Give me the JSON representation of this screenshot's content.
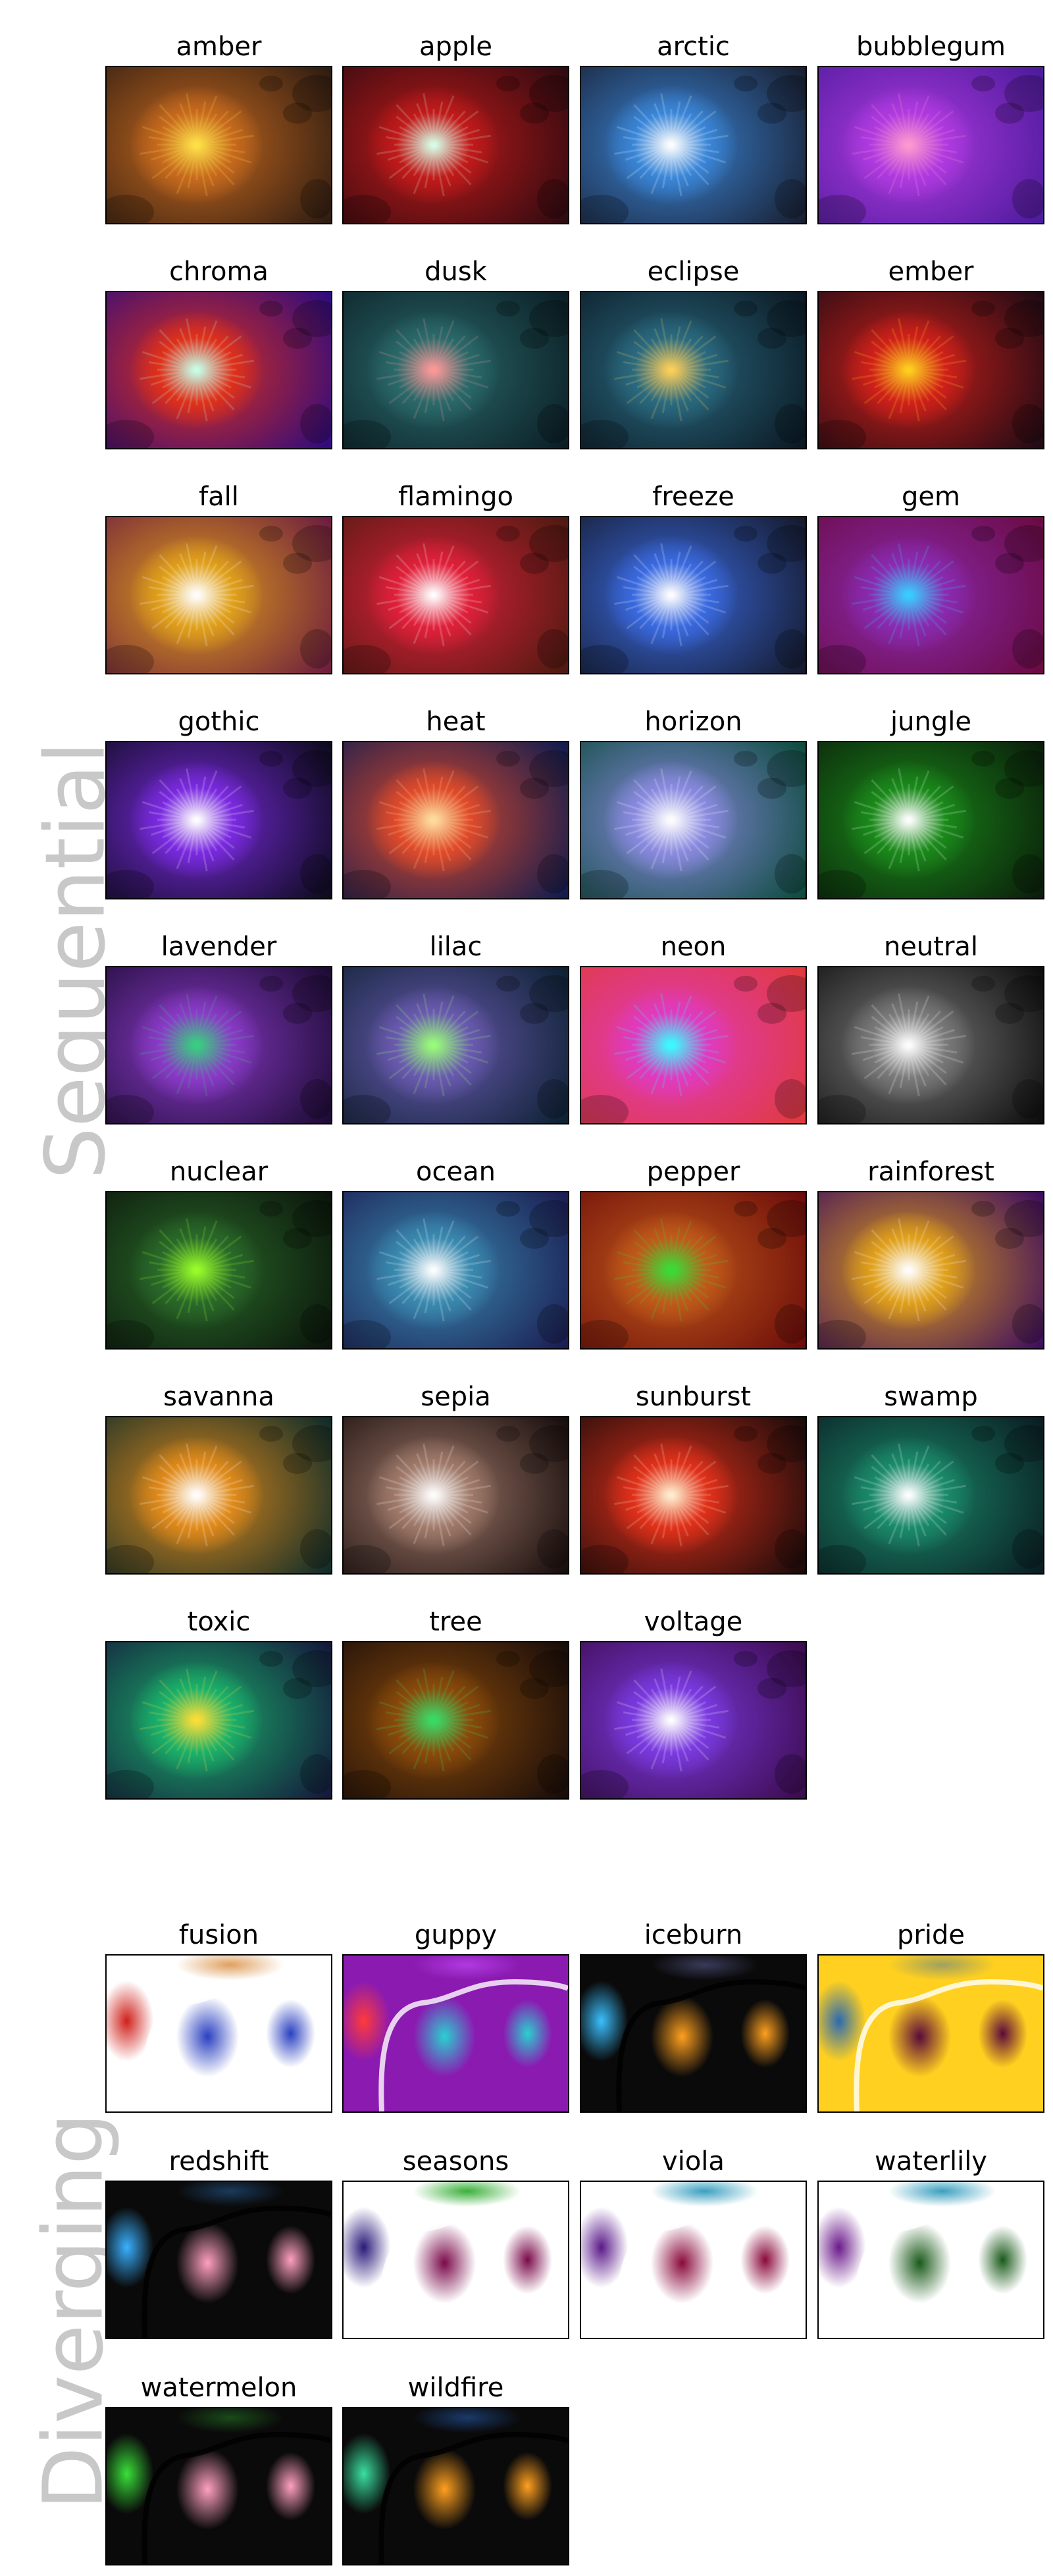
{
  "sections": [
    {
      "label": "Sequential",
      "maps": [
        {
          "name": "amber",
          "center": "#ffe14a",
          "mid": "#c86a1e",
          "edge": "#2a1a12"
        },
        {
          "name": "apple",
          "center": "#d9ffe8",
          "mid": "#c21a1a",
          "edge": "#2a0a10"
        },
        {
          "name": "arctic",
          "center": "#ffffff",
          "mid": "#3a86d8",
          "edge": "#181c2c"
        },
        {
          "name": "bubblegum",
          "center": "#ff9ad0",
          "mid": "#b03ae0",
          "edge": "#4a1a9a"
        },
        {
          "name": "chroma",
          "center": "#c8ffe8",
          "mid": "#e0301a",
          "edge": "#2a0a80"
        },
        {
          "name": "dusk",
          "center": "#ff9a9a",
          "mid": "#2a6a6a",
          "edge": "#0a1c24"
        },
        {
          "name": "eclipse",
          "center": "#ffd05a",
          "mid": "#2a6a80",
          "edge": "#0a1620"
        },
        {
          "name": "ember",
          "center": "#ffd020",
          "mid": "#d0201a",
          "edge": "#1a0a14"
        },
        {
          "name": "fall",
          "center": "#ffffff",
          "mid": "#e0a01a",
          "edge": "#6a1a40"
        },
        {
          "name": "flamingo",
          "center": "#ffffff",
          "mid": "#e0203a",
          "edge": "#4a1a10"
        },
        {
          "name": "freeze",
          "center": "#ffffff",
          "mid": "#3a6ae0",
          "edge": "#141828"
        },
        {
          "name": "gem",
          "center": "#3ad0ff",
          "mid": "#8a2ab0",
          "edge": "#6a0a40"
        },
        {
          "name": "gothic",
          "center": "#ffffff",
          "mid": "#7a2ae0",
          "edge": "#0a0a18"
        },
        {
          "name": "heat",
          "center": "#ffe0a0",
          "mid": "#e04a2a",
          "edge": "#0a1a50"
        },
        {
          "name": "horizon",
          "center": "#ffffff",
          "mid": "#8a8ae0",
          "edge": "#0a4a3a"
        },
        {
          "name": "jungle",
          "center": "#ffffff",
          "mid": "#1a8a1a",
          "edge": "#0a1a0a"
        },
        {
          "name": "lavender",
          "center": "#3ad080",
          "mid": "#8a3ac8",
          "edge": "#1a0a30"
        },
        {
          "name": "lilac",
          "center": "#9aff7a",
          "mid": "#6a5ab0",
          "edge": "#0a2030"
        },
        {
          "name": "neon",
          "center": "#3affff",
          "mid": "#e03ac0",
          "edge": "#e03a3a"
        },
        {
          "name": "neutral",
          "center": "#ffffff",
          "mid": "#7a7a7a",
          "edge": "#0a0a0a"
        },
        {
          "name": "nuclear",
          "center": "#9aff2a",
          "mid": "#2a6a2a",
          "edge": "#0a120a"
        },
        {
          "name": "ocean",
          "center": "#ffffff",
          "mid": "#3a8ab0",
          "edge": "#1a1a50"
        },
        {
          "name": "pepper",
          "center": "#3ae03a",
          "mid": "#c05a1a",
          "edge": "#6a0a0a"
        },
        {
          "name": "rainforest",
          "center": "#ffffff",
          "mid": "#e0a01a",
          "edge": "#3a0a60"
        },
        {
          "name": "savanna",
          "center": "#ffffff",
          "mid": "#e08a1a",
          "edge": "#0a2a2a"
        },
        {
          "name": "sepia",
          "center": "#ffffff",
          "mid": "#a07a6a",
          "edge": "#140a0a"
        },
        {
          "name": "sunburst",
          "center": "#fff0d0",
          "mid": "#e0301a",
          "edge": "#140a0a"
        },
        {
          "name": "swamp",
          "center": "#ffffff",
          "mid": "#1a8a6a",
          "edge": "#0a1a20"
        },
        {
          "name": "toxic",
          "center": "#ffe03a",
          "mid": "#1ab06a",
          "edge": "#14143a"
        },
        {
          "name": "tree",
          "center": "#3ae06a",
          "mid": "#8a4a0a",
          "edge": "#140a0a"
        },
        {
          "name": "voltage",
          "center": "#ffffff",
          "mid": "#7a3ae0",
          "edge": "#3a0a4a"
        }
      ]
    },
    {
      "label": "Diverging",
      "maps": [
        {
          "name": "fusion",
          "bg": "#ffffff",
          "low": "#d0201a",
          "high": "#2a40c0",
          "accent": "#e0a060"
        },
        {
          "name": "guppy",
          "bg": "#8a1ab0",
          "low": "#ff3a3a",
          "high": "#2ad0d0",
          "accent": "#b03ae0"
        },
        {
          "name": "iceburn",
          "bg": "#0a0a0a",
          "low": "#3ac0ff",
          "high": "#ffa020",
          "accent": "#3a3a5a"
        },
        {
          "name": "pride",
          "bg": "#ffd020",
          "low": "#2a6ab0",
          "high": "#5a0a3a",
          "accent": "#a0a060"
        },
        {
          "name": "redshift",
          "bg": "#0a0a0a",
          "low": "#3ab0ff",
          "high": "#ffa0c0",
          "accent": "#1a3a5a"
        },
        {
          "name": "seasons",
          "bg": "#ffffff",
          "low": "#2a1a7a",
          "high": "#7a0a4a",
          "accent": "#3ab03a"
        },
        {
          "name": "viola",
          "bg": "#ffffff",
          "low": "#5a1a8a",
          "high": "#8a0a3a",
          "accent": "#3aa0c0"
        },
        {
          "name": "waterlily",
          "bg": "#ffffff",
          "low": "#6a1a8a",
          "high": "#1a5a1a",
          "accent": "#3aa0c0"
        },
        {
          "name": "watermelon",
          "bg": "#0a0a0a",
          "low": "#3ae03a",
          "high": "#ffa0c0",
          "accent": "#1a4a1a"
        },
        {
          "name": "wildfire",
          "bg": "#0a0a0a",
          "low": "#3ae0a0",
          "high": "#ffa020",
          "accent": "#1a3a6a"
        }
      ]
    }
  ]
}
